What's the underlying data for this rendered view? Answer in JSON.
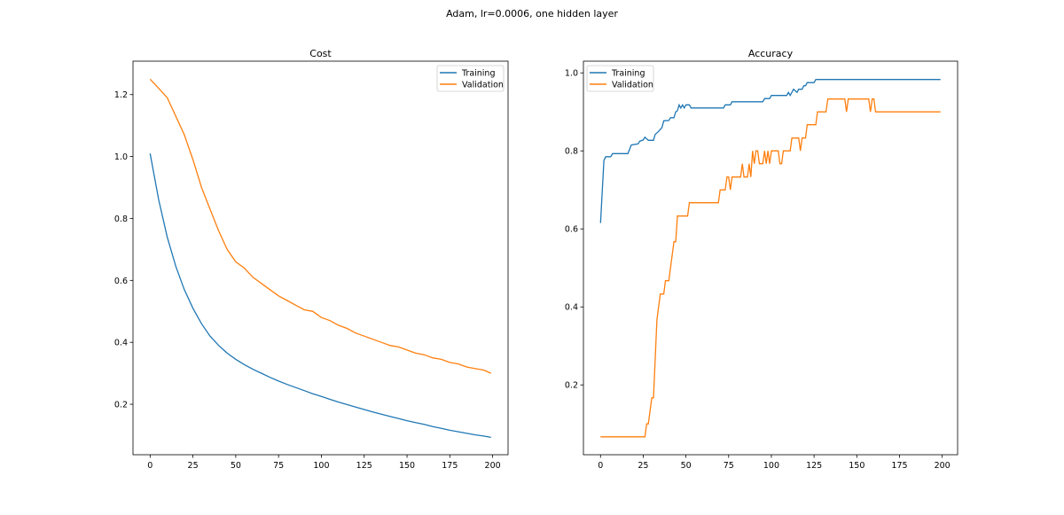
{
  "suptitle": "Adam, lr=0.0006, one hidden layer",
  "colors": {
    "training": "#1f77b4",
    "validation": "#ff7f0e"
  },
  "chart_data": [
    {
      "type": "line",
      "title": "Cost",
      "xlabel": "",
      "ylabel": "",
      "xlim": [
        -10,
        209
      ],
      "ylim": [
        0.037,
        1.308
      ],
      "xticks": [
        0,
        25,
        50,
        75,
        100,
        125,
        150,
        175,
        200
      ],
      "yticks": [
        0.2,
        0.4,
        0.6,
        0.8,
        1.0,
        1.2
      ],
      "ytick_labels": [
        "0.2",
        "0.4",
        "0.6",
        "0.8",
        "1.0",
        "1.2"
      ],
      "legend": {
        "placement": "top-right",
        "entries": [
          "Training",
          "Validation"
        ]
      },
      "grid": false,
      "series": [
        {
          "name": "Training",
          "x": [
            0,
            5,
            10,
            15,
            20,
            25,
            30,
            35,
            40,
            45,
            50,
            55,
            60,
            65,
            70,
            75,
            80,
            85,
            90,
            95,
            100,
            105,
            110,
            115,
            120,
            125,
            130,
            135,
            140,
            145,
            150,
            155,
            160,
            165,
            170,
            175,
            180,
            185,
            190,
            195,
            199
          ],
          "y": [
            1.01,
            0.86,
            0.74,
            0.645,
            0.57,
            0.51,
            0.46,
            0.42,
            0.39,
            0.365,
            0.345,
            0.328,
            0.313,
            0.3,
            0.287,
            0.275,
            0.264,
            0.254,
            0.244,
            0.234,
            0.225,
            0.216,
            0.207,
            0.199,
            0.191,
            0.183,
            0.175,
            0.168,
            0.161,
            0.154,
            0.147,
            0.141,
            0.135,
            0.128,
            0.122,
            0.116,
            0.111,
            0.106,
            0.101,
            0.097,
            0.093
          ]
        },
        {
          "name": "Validation",
          "x": [
            0,
            5,
            10,
            15,
            20,
            25,
            30,
            35,
            40,
            45,
            50,
            55,
            60,
            65,
            70,
            75,
            80,
            85,
            90,
            95,
            100,
            105,
            110,
            115,
            120,
            125,
            130,
            135,
            140,
            145,
            150,
            155,
            160,
            165,
            170,
            175,
            180,
            185,
            190,
            195,
            199
          ],
          "y": [
            1.25,
            1.22,
            1.19,
            1.13,
            1.07,
            0.99,
            0.9,
            0.83,
            0.76,
            0.7,
            0.66,
            0.64,
            0.61,
            0.59,
            0.57,
            0.55,
            0.535,
            0.52,
            0.505,
            0.5,
            0.48,
            0.47,
            0.455,
            0.445,
            0.43,
            0.42,
            0.41,
            0.4,
            0.39,
            0.385,
            0.375,
            0.365,
            0.36,
            0.35,
            0.345,
            0.335,
            0.33,
            0.32,
            0.315,
            0.31,
            0.3
          ]
        }
      ]
    },
    {
      "type": "line",
      "title": "Accuracy",
      "xlabel": "",
      "ylabel": "",
      "xlim": [
        -10,
        209
      ],
      "ylim": [
        0.021,
        1.03
      ],
      "xticks": [
        0,
        25,
        50,
        75,
        100,
        125,
        150,
        175,
        200
      ],
      "yticks": [
        0.2,
        0.4,
        0.6,
        0.8,
        1.0
      ],
      "ytick_labels": [
        "0.2",
        "0.4",
        "0.6",
        "0.8",
        "1.0"
      ],
      "legend": {
        "placement": "top-left",
        "entries": [
          "Training",
          "Validation"
        ]
      },
      "grid": false,
      "series": [
        {
          "name": "Training",
          "x": [
            0,
            2,
            3,
            6,
            7,
            16,
            18,
            22,
            23,
            25,
            26,
            28,
            31,
            32,
            34,
            36,
            37,
            40,
            41,
            43,
            44,
            45,
            46,
            47,
            48,
            49,
            50,
            52,
            53,
            72,
            73,
            76,
            77,
            95,
            96,
            99,
            100,
            109,
            110,
            111,
            113,
            115,
            116,
            118,
            119,
            120,
            121,
            125,
            126,
            199
          ],
          "y": [
            0.615,
            0.775,
            0.785,
            0.785,
            0.793,
            0.793,
            0.815,
            0.818,
            0.825,
            0.828,
            0.835,
            0.827,
            0.827,
            0.842,
            0.85,
            0.86,
            0.877,
            0.878,
            0.885,
            0.885,
            0.9,
            0.903,
            0.918,
            0.91,
            0.918,
            0.91,
            0.918,
            0.918,
            0.91,
            0.91,
            0.918,
            0.918,
            0.926,
            0.926,
            0.934,
            0.934,
            0.942,
            0.942,
            0.95,
            0.942,
            0.958,
            0.95,
            0.958,
            0.958,
            0.967,
            0.967,
            0.975,
            0.975,
            0.983,
            0.983
          ]
        },
        {
          "name": "Validation",
          "x": [
            0,
            26,
            27,
            28,
            30,
            31,
            33,
            35,
            37,
            38,
            40,
            43,
            44,
            45,
            51,
            52,
            69,
            70,
            73,
            74,
            75,
            76,
            77,
            82,
            83,
            84,
            86,
            87,
            88,
            89,
            90,
            91,
            92,
            93,
            95,
            96,
            97,
            98,
            99,
            100,
            104,
            105,
            106,
            107,
            111,
            112,
            116,
            117,
            118,
            120,
            121,
            126,
            127,
            132,
            133,
            143,
            144,
            145,
            157,
            158,
            159,
            160,
            161,
            199
          ],
          "y": [
            0.067,
            0.067,
            0.1,
            0.1,
            0.167,
            0.167,
            0.367,
            0.433,
            0.433,
            0.467,
            0.467,
            0.567,
            0.567,
            0.633,
            0.633,
            0.667,
            0.667,
            0.7,
            0.7,
            0.733,
            0.733,
            0.7,
            0.733,
            0.733,
            0.767,
            0.733,
            0.733,
            0.767,
            0.733,
            0.8,
            0.767,
            0.8,
            0.8,
            0.767,
            0.767,
            0.8,
            0.767,
            0.8,
            0.767,
            0.8,
            0.8,
            0.767,
            0.767,
            0.8,
            0.8,
            0.833,
            0.833,
            0.8,
            0.833,
            0.833,
            0.867,
            0.867,
            0.9,
            0.9,
            0.933,
            0.933,
            0.9,
            0.933,
            0.933,
            0.9,
            0.933,
            0.933,
            0.9,
            0.9
          ]
        }
      ]
    }
  ]
}
